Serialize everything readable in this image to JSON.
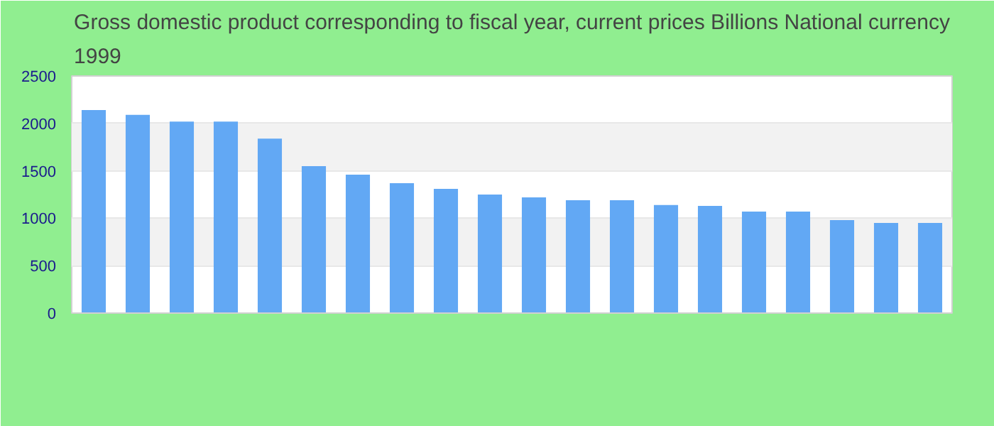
{
  "chart_data": {
    "type": "bar",
    "title": "Gross domestic product corresponding to fiscal year, current prices Billions National currency 1999",
    "categories": [
      null,
      null,
      null,
      null,
      null,
      null,
      null,
      null,
      null,
      null,
      null,
      null,
      null,
      null,
      null,
      null,
      null,
      null,
      null,
      null
    ],
    "values": [
      2140,
      2090,
      2020,
      2020,
      1840,
      1550,
      1460,
      1370,
      1310,
      1250,
      1220,
      1190,
      1190,
      1140,
      1130,
      1070,
      1070,
      980,
      950,
      950
    ],
    "color": "#62a8f4",
    "ylim": [
      0,
      2500
    ],
    "yticks": [
      0,
      500,
      1000,
      1500,
      2000,
      2500
    ],
    "grid": "y"
  }
}
